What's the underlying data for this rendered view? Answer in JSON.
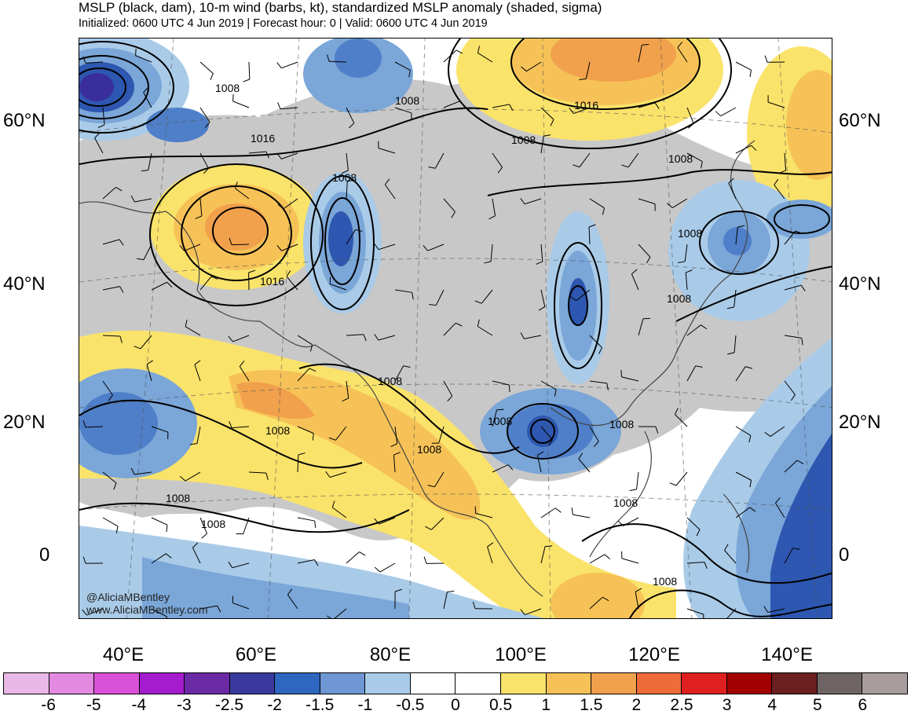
{
  "header": {
    "title": "MSLP (black, dam), 10-m wind (barbs, kt), standardized MSLP anomaly (shaded, sigma)",
    "subtitle": "Initialized: 0600 UTC 4 Jun 2019 | Forecast hour: 0 | Valid: 0600 UTC 4 Jun 2019"
  },
  "map": {
    "lat_labels": [
      "60°N",
      "40°N",
      "20°N",
      "0"
    ],
    "lon_labels": [
      "40°E",
      "60°E",
      "80°E",
      "100°E",
      "120°E",
      "140°E"
    ],
    "contour_labels": [
      "1008",
      "1016",
      "1008",
      "1016",
      "1016",
      "1008",
      "1008",
      "1008",
      "1008",
      "1008",
      "1008",
      "1008",
      "1008",
      "1008",
      "1008",
      "1008",
      "1008",
      "1008",
      "1008"
    ],
    "credits": [
      "@AliciaMBentley",
      "www.AliciaMBentley.com"
    ],
    "colors": {
      "neutral": "#c8c8c8",
      "neg05": "#a9cbe8",
      "neg1": "#7aa6d8",
      "neg15": "#4f7fc8",
      "neg2": "#2d57b0",
      "neg25": "#3a2f9a",
      "pos05": "#fae36a",
      "pos1": "#f6c257",
      "pos15": "#f1a04c",
      "pos2": "#ef7b3c"
    }
  },
  "colorbar": {
    "labels": [
      "-6",
      "-5",
      "-4",
      "-3",
      "-2.5",
      "-2",
      "-1.5",
      "-1",
      "-0.5",
      "0",
      "0.5",
      "1",
      "1.5",
      "2",
      "2.5",
      "3",
      "4",
      "5",
      "6"
    ],
    "colors": [
      "#e8b8e6",
      "#e38ae0",
      "#d951d8",
      "#a51ccf",
      "#6a2aa6",
      "#3a3a9e",
      "#2f66bf",
      "#6e97d3",
      "#a9cbe8",
      "#ffffff",
      "#ffffff",
      "#fae36a",
      "#f6c257",
      "#f1a04c",
      "#ef6b3a",
      "#e02020",
      "#a00000",
      "#6b2020",
      "#6e6464",
      "#a89c9c"
    ]
  }
}
